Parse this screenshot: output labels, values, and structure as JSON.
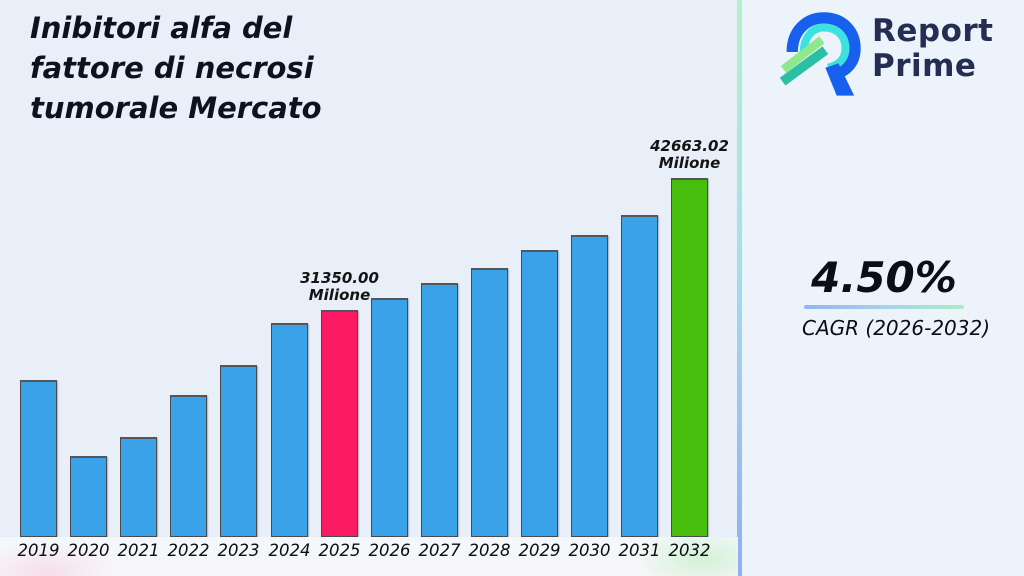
{
  "title": {
    "line1": "Inibitori alfa del",
    "line2": "fattore di necrosi",
    "line3": "tumorale Mercato"
  },
  "brand": {
    "line1": "Report",
    "line2": "Prime"
  },
  "stats": {
    "cagr_value": "4.50%",
    "cagr_caption": "CAGR (2026-2032)"
  },
  "colors": {
    "background": "#E9EFF9",
    "panel": "#EDF3FB",
    "bar_blue": "#3AA2E8",
    "bar_pink": "#FB1A63",
    "bar_green": "#47BD0E",
    "divider_top": "#B5F0CB",
    "divider_bottom": "#8FAFF2",
    "underline_left": "#93B4F0",
    "underline_right": "#A9EEC3",
    "brand_navy": "#232E52",
    "logo_blue": "#1760EE",
    "logo_cyan": "#3BE2DE",
    "logo_teal": "#2BBFA4",
    "logo_green": "#8EE98C",
    "text_dark": "#0E1220"
  },
  "chart_data": {
    "type": "bar",
    "title": "Inibitori alfa del fattore di necrosi tumorale Mercato",
    "unit": "Milione",
    "categories": [
      "2019",
      "2020",
      "2021",
      "2022",
      "2023",
      "2024",
      "2025",
      "2026",
      "2027",
      "2028",
      "2029",
      "2030",
      "2031",
      "2032"
    ],
    "values": [
      25350,
      18840,
      20470,
      24070,
      26640,
      30240,
      31350.0,
      32380,
      33660,
      34950,
      36490,
      37780,
      39490,
      42663.02
    ],
    "labeled_points": [
      {
        "year": "2025",
        "label": "31350.00",
        "unit": "Milione"
      },
      {
        "year": "2032",
        "label": "42663.02",
        "unit": "Milione"
      }
    ],
    "bar_colors": {
      "default": "#3AA2E8",
      "2025": "#FB1A63",
      "2032": "#47BD0E"
    },
    "ylim": [
      11900,
      45060
    ],
    "xlabel": "",
    "ylabel": "",
    "grid": false,
    "legend": false
  }
}
